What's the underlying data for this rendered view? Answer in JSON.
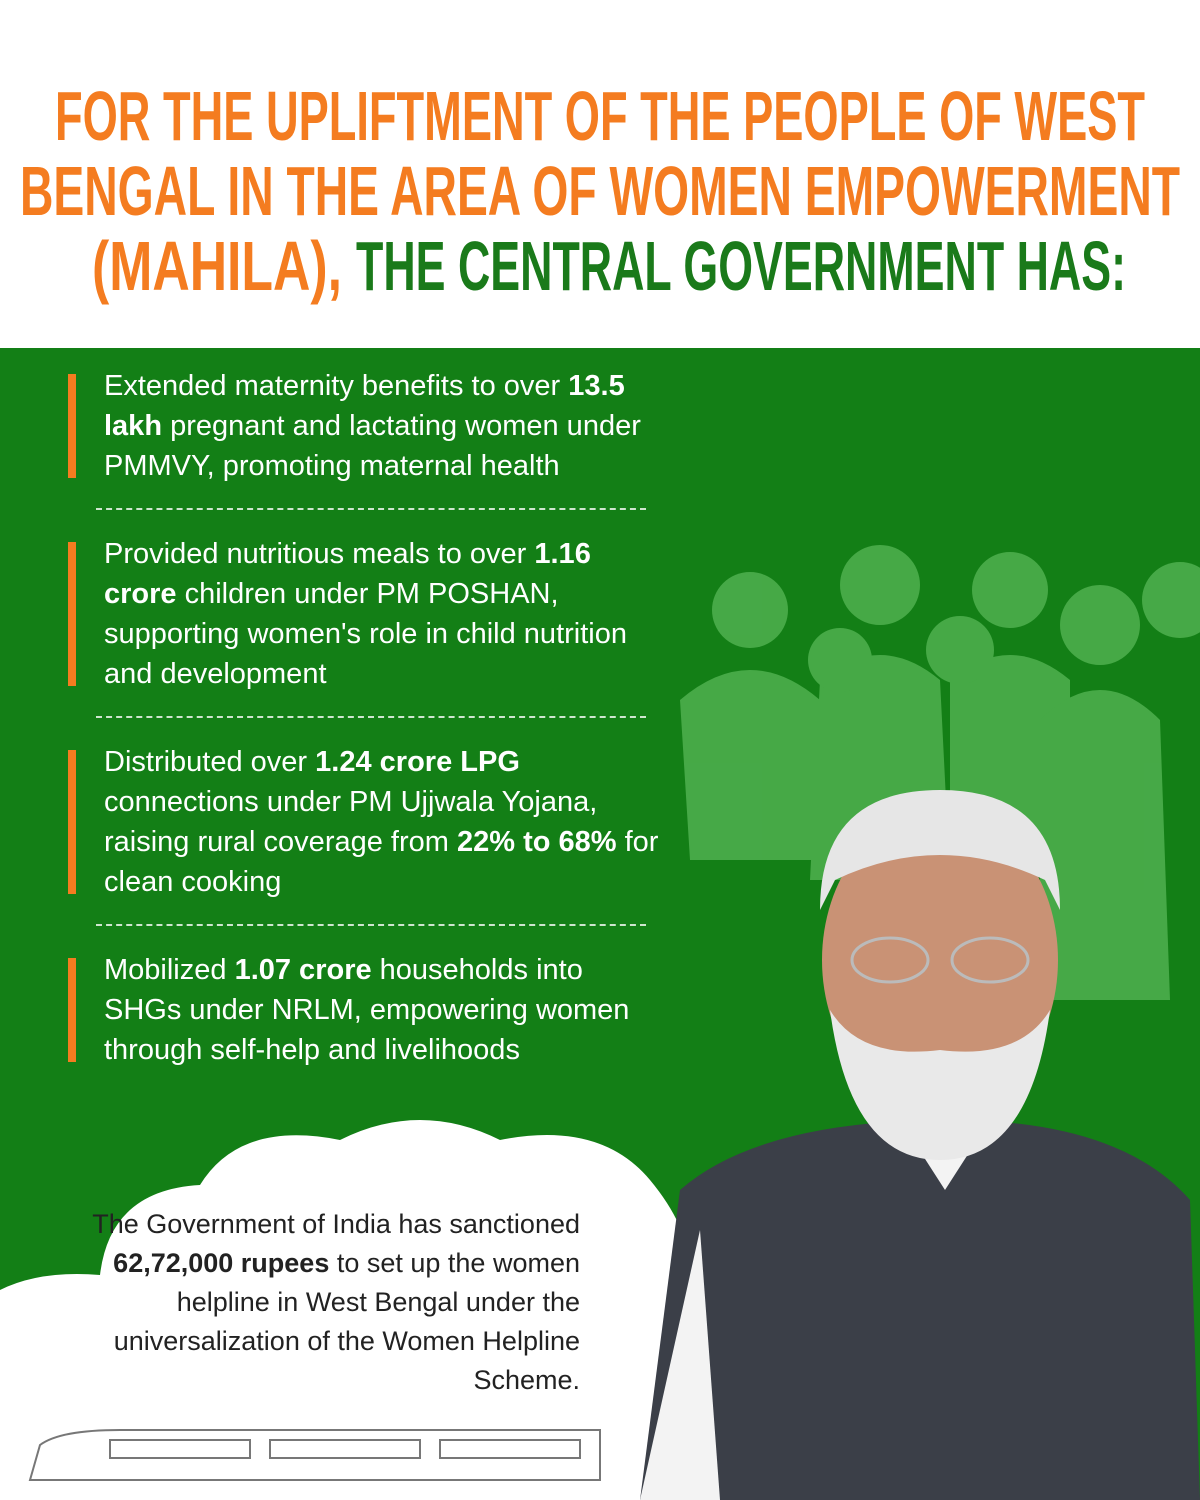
{
  "title": {
    "line1": "FOR THE UPLIFTMENT OF THE PEOPLE OF WEST",
    "line2": "BENGAL IN THE AREA OF WOMEN EMPOWERMENT",
    "line3_orange": "(MAHILA),",
    "line3_green": "THE CENTRAL GOVERNMENT HAS:"
  },
  "items": [
    {
      "segments": [
        {
          "text": "Extended maternity benefits to over ",
          "bold": false
        },
        {
          "text": "13.5 lakh",
          "bold": true
        },
        {
          "text": " pregnant and lactating women under PMMVY, promoting maternal health",
          "bold": false
        }
      ]
    },
    {
      "segments": [
        {
          "text": "Provided nutritious meals to over ",
          "bold": false
        },
        {
          "text": "1.16 crore",
          "bold": true
        },
        {
          "text": " children under PM POSHAN, supporting women's role in child nutrition and development",
          "bold": false
        }
      ]
    },
    {
      "segments": [
        {
          "text": "Distributed over ",
          "bold": false
        },
        {
          "text": "1.24 crore LPG",
          "bold": true
        },
        {
          "text": " connections under PM Ujjwala Yojana, raising rural coverage from ",
          "bold": false
        },
        {
          "text": "22% to 68%",
          "bold": true
        },
        {
          "text": " for clean cooking",
          "bold": false
        }
      ]
    },
    {
      "segments": [
        {
          "text": "Mobilized ",
          "bold": false
        },
        {
          "text": "1.07 crore",
          "bold": true
        },
        {
          "text": " households into SHGs under NRLM, empowering women through self-help and livelihoods",
          "bold": false
        }
      ]
    }
  ],
  "note": {
    "segments": [
      {
        "text": "The Government of India has sanctioned ",
        "bold": false
      },
      {
        "text": "62,72,000 rupees",
        "bold": true
      },
      {
        "text": " to set up the women helpline in West Bengal under the universalization of the Women Helpline Scheme.",
        "bold": false
      }
    ]
  }
}
